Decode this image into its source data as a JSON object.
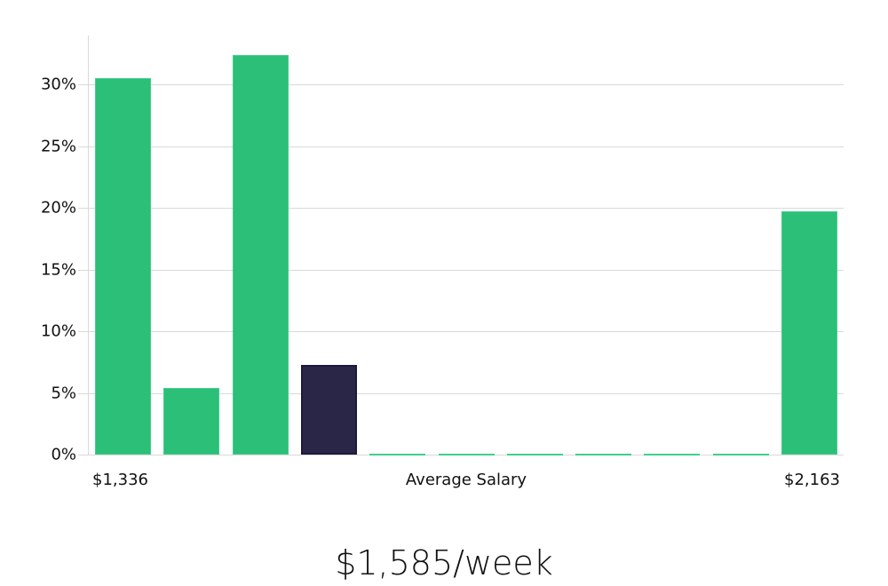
{
  "chart_data": {
    "type": "bar",
    "title": "",
    "xlabel": "Average Salary",
    "ylabel": "",
    "categories": [
      "bin1",
      "bin2",
      "bin3",
      "bin4",
      "bin5",
      "bin6",
      "bin7",
      "bin8",
      "bin9",
      "bin10",
      "bin11"
    ],
    "values": [
      30.5,
      5.4,
      32.4,
      7.3,
      0.1,
      0.1,
      0.1,
      0.1,
      0.1,
      0.1,
      19.7
    ],
    "highlight_index": 3,
    "x_min_label": "$1,336",
    "x_max_label": "$2,163",
    "yticks": [
      "0%",
      "5%",
      "10%",
      "15%",
      "20%",
      "25%",
      "30%"
    ],
    "ylim": [
      0,
      34
    ],
    "grid": true,
    "legend": "none",
    "colors": {
      "bar": "#2bbf78",
      "highlight": "#2a2647",
      "grid": "#d9d9d9"
    }
  },
  "summary": {
    "value_label": "$1,585/week"
  }
}
